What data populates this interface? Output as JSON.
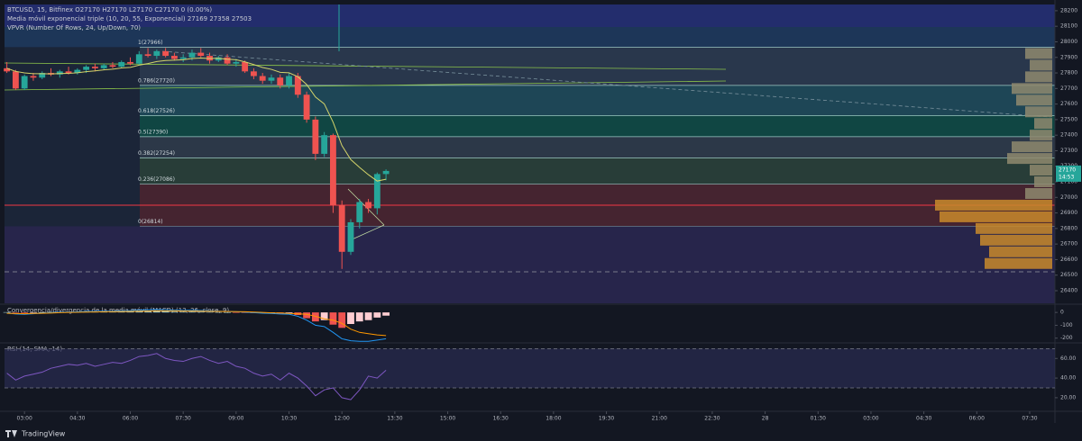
{
  "header": {
    "symbol": "BTCUSD, 15, Bitfinex O27170 H27170 L27170 C27170 0 (0.00%)",
    "indicator": "Media móvil exponencial triple (10, 20, 55, Exponencial) 27169 27358 27503",
    "vpvr": "VPVR (Number Of Rows, 24, Up/Down, 70)"
  },
  "chart_data": [
    {
      "type": "candlestick",
      "x": [
        150,
        165,
        180,
        195,
        210,
        225,
        240,
        255,
        270,
        285,
        300,
        315,
        330,
        345,
        360,
        375,
        390,
        405,
        420,
        435,
        450,
        465,
        480,
        495,
        510,
        525,
        540,
        555,
        570,
        585,
        600,
        615,
        630,
        645,
        660,
        675,
        690,
        705,
        720,
        735,
        750,
        765,
        780,
        795
      ],
      "open": [
        27830,
        27810,
        27700,
        27780,
        27770,
        27800,
        27790,
        27810,
        27800,
        27820,
        27840,
        27830,
        27850,
        27840,
        27870,
        27860,
        27920,
        27910,
        27940,
        27910,
        27890,
        27900,
        27930,
        27910,
        27880,
        27900,
        27860,
        27870,
        27810,
        27780,
        27750,
        27770,
        27720,
        27780,
        27660,
        27500,
        27280,
        27400,
        26950,
        26650,
        26840,
        26970,
        26930,
        27150
      ],
      "high": [
        27870,
        27820,
        27790,
        27800,
        27810,
        27830,
        27820,
        27840,
        27830,
        27850,
        27860,
        27860,
        27870,
        27880,
        27900,
        27940,
        27960,
        27950,
        27960,
        27930,
        27920,
        27950,
        27960,
        27930,
        27910,
        27920,
        27890,
        27880,
        27830,
        27800,
        27790,
        27790,
        27800,
        27800,
        27680,
        27520,
        27420,
        27410,
        26980,
        26860,
        26990,
        26990,
        27160,
        27180
      ],
      "low": [
        27800,
        27690,
        27690,
        27750,
        27760,
        27780,
        27770,
        27790,
        27790,
        27800,
        27810,
        27820,
        27830,
        27830,
        27850,
        27850,
        27900,
        27890,
        27900,
        27880,
        27870,
        27880,
        27900,
        27860,
        27870,
        27850,
        27840,
        27800,
        27760,
        27730,
        27730,
        27700,
        27700,
        27640,
        27480,
        27240,
        27260,
        26900,
        26540,
        26630,
        26800,
        26900,
        26890,
        27110
      ],
      "close": [
        27810,
        27700,
        27780,
        27770,
        27800,
        27790,
        27810,
        27800,
        27820,
        27840,
        27830,
        27850,
        27840,
        27870,
        27860,
        27920,
        27910,
        27940,
        27910,
        27890,
        27900,
        27930,
        27910,
        27880,
        27900,
        27860,
        27870,
        27810,
        27780,
        27750,
        27770,
        27720,
        27780,
        27660,
        27500,
        27280,
        27400,
        26950,
        26650,
        26840,
        26970,
        26930,
        27150,
        27170
      ],
      "up_color": "#26a69a",
      "down_color": "#ef5350",
      "ema": {
        "color": "#d4d46a",
        "values": [
          27830,
          27810,
          27800,
          27795,
          27795,
          27794,
          27796,
          27797,
          27801,
          27808,
          27813,
          27820,
          27824,
          27832,
          27836,
          27850,
          27860,
          27873,
          27880,
          27882,
          27885,
          27893,
          27896,
          27893,
          27894,
          27888,
          27885,
          27871,
          27854,
          27835,
          27823,
          27804,
          27801,
          27776,
          27726,
          27645,
          27601,
          27483,
          27333,
          27243,
          27193,
          27146,
          27105,
          27117
        ]
      },
      "fib_levels": [
        {
          "value": 27966,
          "label": "1(27966)"
        },
        {
          "value": 27720,
          "label": "0.786(27720)"
        },
        {
          "value": 27526,
          "label": "0.618(27526)"
        },
        {
          "value": 27390,
          "label": "0.5(27390)"
        },
        {
          "value": 27254,
          "label": "0.382(27254)"
        },
        {
          "value": 27086,
          "label": "0.236(27086)"
        },
        {
          "value": 26814,
          "label": "0(26814)"
        }
      ],
      "volume_profile": {
        "prices": [
          27925,
          27850,
          27775,
          27700,
          27625,
          27550,
          27475,
          27400,
          27325,
          27250,
          27175,
          27100,
          27025,
          26950,
          26875,
          26800,
          26725,
          26650,
          26575
        ],
        "values": [
          30,
          25,
          30,
          45,
          40,
          30,
          20,
          25,
          45,
          50,
          25,
          20,
          30,
          130,
          125,
          85,
          80,
          70,
          75
        ]
      },
      "last_price": 27170,
      "countdown": "14:53",
      "xlim": [
        146,
        1933
      ],
      "xticks": [
        {
          "value": 180,
          "label": "03:00"
        },
        {
          "value": 270,
          "label": "04:30"
        },
        {
          "value": 360,
          "label": "06:00"
        },
        {
          "value": 450,
          "label": "07:30"
        },
        {
          "value": 540,
          "label": "09:00"
        },
        {
          "value": 630,
          "label": "10:30"
        },
        {
          "value": 720,
          "label": "12:00"
        },
        {
          "value": 810,
          "label": "13:30"
        },
        {
          "value": 900,
          "label": "15:00"
        },
        {
          "value": 990,
          "label": "16:30"
        },
        {
          "value": 1080,
          "label": "18:00"
        },
        {
          "value": 1170,
          "label": "19:30"
        },
        {
          "value": 1260,
          "label": "21:00"
        },
        {
          "value": 1350,
          "label": "22:30"
        },
        {
          "value": 1440,
          "label": "28"
        },
        {
          "value": 1530,
          "label": "01:30"
        },
        {
          "value": 1620,
          "label": "03:00"
        },
        {
          "value": 1710,
          "label": "04:30"
        },
        {
          "value": 1800,
          "label": "06:00"
        },
        {
          "value": 1890,
          "label": "07:30"
        }
      ],
      "ylim": [
        26319,
        28240
      ],
      "yticks": [
        26400,
        26500,
        26600,
        26700,
        26800,
        26900,
        27000,
        27100,
        27200,
        27300,
        27400,
        27500,
        27600,
        27700,
        27800,
        27900,
        28000,
        28100,
        28200
      ]
    },
    {
      "type": "macd",
      "title": "Convergencia/divergencia de la media móvil (MACD) (12, 26, close, 9)",
      "histogram": [
        2,
        -3,
        -5,
        -2,
        1,
        3,
        4,
        3,
        4,
        5,
        4,
        5,
        4,
        5,
        6,
        8,
        9,
        10,
        8,
        6,
        5,
        6,
        5,
        3,
        2,
        0,
        -1,
        -3,
        -5,
        -6,
        -5,
        -8,
        -6,
        -20,
        -45,
        -70,
        -60,
        -95,
        -120,
        -90,
        -70,
        -60,
        -40,
        -25
      ],
      "macd": [
        -5,
        -12,
        -15,
        -10,
        -6,
        -2,
        2,
        3,
        5,
        8,
        8,
        10,
        10,
        12,
        14,
        18,
        20,
        22,
        20,
        18,
        16,
        17,
        15,
        12,
        10,
        7,
        5,
        2,
        -2,
        -6,
        -8,
        -12,
        -14,
        -30,
        -60,
        -100,
        -110,
        -155,
        -205,
        -220,
        -225,
        -225,
        -215,
        -205
      ],
      "signal": [
        -7,
        -9,
        -10,
        -8,
        -7,
        -5,
        -2,
        0,
        1,
        3,
        4,
        5,
        6,
        7,
        8,
        10,
        11,
        12,
        12,
        12,
        11,
        11,
        10,
        9,
        8,
        7,
        6,
        5,
        3,
        0,
        -3,
        -4,
        -8,
        -10,
        -15,
        -30,
        -50,
        -60,
        -85,
        -130,
        -155,
        -165,
        -175,
        -180
      ],
      "hist_up_color": "#ffcdd2",
      "hist_down_color": "#ef5350",
      "macd_color": "#2196f3",
      "signal_color": "#ff9800",
      "ylim": [
        -230,
        50
      ],
      "yticks": [
        0,
        -100,
        -200
      ]
    },
    {
      "type": "rsi",
      "title": "RSI (14, SMA, 14)",
      "values": [
        45,
        38,
        42,
        44,
        46,
        50,
        52,
        54,
        53,
        55,
        52,
        54,
        56,
        55,
        58,
        62,
        63,
        65,
        60,
        58,
        57,
        60,
        62,
        58,
        55,
        57,
        52,
        50,
        45,
        42,
        44,
        38,
        45,
        40,
        32,
        22,
        28,
        30,
        20,
        18,
        28,
        42,
        40,
        48
      ],
      "color": "#7e57c2",
      "bands": [
        70,
        30
      ],
      "ylim": [
        8,
        74
      ],
      "yticks": [
        {
          "value": 60,
          "label": "60.00"
        },
        {
          "value": 40,
          "label": "40.00"
        },
        {
          "value": 20,
          "label": "20.00"
        }
      ]
    }
  ],
  "footer": "TradingView"
}
